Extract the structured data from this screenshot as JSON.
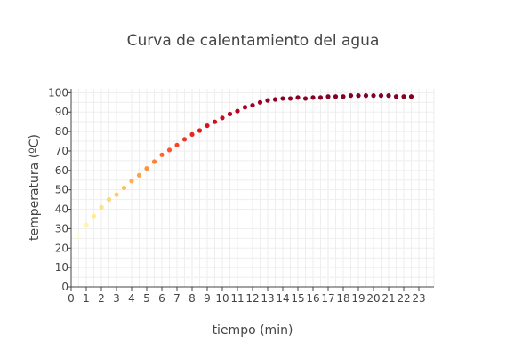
{
  "chart_data": {
    "type": "scatter",
    "title": "Curva de calentamiento del agua",
    "xlabel": "tiempo (min)",
    "ylabel": "temperatura (ºC)",
    "xlim": [
      0,
      24
    ],
    "ylim": [
      0,
      102
    ],
    "xticks": [
      0,
      1,
      2,
      3,
      4,
      5,
      6,
      7,
      8,
      9,
      10,
      11,
      12,
      13,
      14,
      15,
      16,
      17,
      18,
      19,
      20,
      21,
      22,
      23
    ],
    "yticks": [
      0,
      10,
      20,
      30,
      40,
      50,
      60,
      70,
      80,
      90,
      100
    ],
    "grid": true,
    "colorscale": [
      "#ffffcc",
      "#ffeda0",
      "#fed976",
      "#feb24c",
      "#fd8d3c",
      "#fc4e2a",
      "#e31a1c",
      "#bd0026",
      "#800026"
    ],
    "series": [
      {
        "x": [
          0.5,
          1,
          1.5,
          2,
          2.5,
          3,
          3.5,
          4,
          4.5,
          5,
          5.5,
          6,
          6.5,
          7,
          7.5,
          8,
          8.5,
          9,
          9.5,
          10,
          10.5,
          11,
          11.5,
          12,
          12.5,
          13,
          13.5,
          14,
          14.5,
          15,
          15.5,
          16,
          16.5,
          17,
          17.5,
          18,
          18.5,
          19,
          19.5,
          20,
          20.5,
          21,
          21.5,
          22,
          22.5
        ],
        "y": [
          26.5,
          32,
          36.5,
          41,
          45,
          47.5,
          51,
          54.5,
          57.5,
          61,
          64.5,
          68,
          70.5,
          73,
          76,
          78.5,
          80.5,
          83,
          85,
          87,
          89,
          90.5,
          92.5,
          93.5,
          95,
          96,
          96.5,
          97,
          97,
          97.5,
          97,
          97.5,
          97.5,
          98,
          98,
          98,
          98.5,
          98.5,
          98.5,
          98.5,
          98.5,
          98.5,
          98,
          98,
          98
        ]
      }
    ]
  }
}
